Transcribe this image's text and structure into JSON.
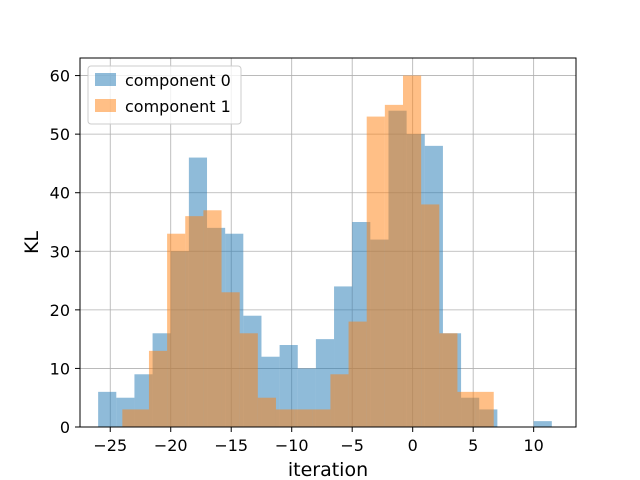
{
  "chart_data": {
    "type": "histogram",
    "xlabel": "iteration",
    "ylabel": "KL",
    "xlim": [
      -27.5,
      13.5
    ],
    "ylim": [
      0,
      63
    ],
    "xticks": [
      -25,
      -20,
      -15,
      -10,
      -5,
      0,
      5,
      10
    ],
    "yticks": [
      0,
      10,
      20,
      30,
      40,
      50,
      60
    ],
    "grid": true,
    "legend_position": "upper-left",
    "series": [
      {
        "name": "component 0",
        "color": "#1f77b4",
        "opacity": 0.5,
        "bins": [
          {
            "x0": -26.0,
            "x1": -24.5,
            "value": 6
          },
          {
            "x0": -24.5,
            "x1": -23.0,
            "value": 5
          },
          {
            "x0": -23.0,
            "x1": -21.5,
            "value": 9
          },
          {
            "x0": -21.5,
            "x1": -20.0,
            "value": 16
          },
          {
            "x0": -20.0,
            "x1": -18.5,
            "value": 30
          },
          {
            "x0": -18.5,
            "x1": -17.0,
            "value": 46
          },
          {
            "x0": -17.0,
            "x1": -15.5,
            "value": 34
          },
          {
            "x0": -15.5,
            "x1": -14.0,
            "value": 33
          },
          {
            "x0": -14.0,
            "x1": -12.5,
            "value": 19
          },
          {
            "x0": -12.5,
            "x1": -11.0,
            "value": 12
          },
          {
            "x0": -11.0,
            "x1": -9.5,
            "value": 14
          },
          {
            "x0": -9.5,
            "x1": -8.0,
            "value": 10
          },
          {
            "x0": -8.0,
            "x1": -6.5,
            "value": 15
          },
          {
            "x0": -6.5,
            "x1": -5.0,
            "value": 24
          },
          {
            "x0": -5.0,
            "x1": -3.5,
            "value": 35
          },
          {
            "x0": -3.5,
            "x1": -2.0,
            "value": 32
          },
          {
            "x0": -2.0,
            "x1": -0.5,
            "value": 54
          },
          {
            "x0": -0.5,
            "x1": 1.0,
            "value": 50
          },
          {
            "x0": 1.0,
            "x1": 2.5,
            "value": 48
          },
          {
            "x0": 2.5,
            "x1": 4.0,
            "value": 16
          },
          {
            "x0": 4.0,
            "x1": 5.5,
            "value": 5
          },
          {
            "x0": 5.5,
            "x1": 7.0,
            "value": 3
          },
          {
            "x0": 7.0,
            "x1": 8.5,
            "value": 0
          },
          {
            "x0": 8.5,
            "x1": 10.0,
            "value": 0
          },
          {
            "x0": 10.0,
            "x1": 11.5,
            "value": 1
          }
        ]
      },
      {
        "name": "component 1",
        "color": "#ff7f0e",
        "opacity": 0.5,
        "bins": [
          {
            "x0": -24.0,
            "x1": -21.8,
            "value": 3
          },
          {
            "x0": -21.8,
            "x1": -20.3,
            "value": 13
          },
          {
            "x0": -20.3,
            "x1": -18.8,
            "value": 33
          },
          {
            "x0": -18.8,
            "x1": -17.3,
            "value": 36
          },
          {
            "x0": -17.3,
            "x1": -15.8,
            "value": 37
          },
          {
            "x0": -15.8,
            "x1": -14.3,
            "value": 23
          },
          {
            "x0": -14.3,
            "x1": -12.8,
            "value": 16
          },
          {
            "x0": -12.8,
            "x1": -11.3,
            "value": 5
          },
          {
            "x0": -11.3,
            "x1": -9.8,
            "value": 3
          },
          {
            "x0": -9.8,
            "x1": -8.3,
            "value": 3
          },
          {
            "x0": -8.3,
            "x1": -6.8,
            "value": 3
          },
          {
            "x0": -6.8,
            "x1": -5.3,
            "value": 9
          },
          {
            "x0": -5.3,
            "x1": -3.8,
            "value": 18
          },
          {
            "x0": -3.8,
            "x1": -2.3,
            "value": 53
          },
          {
            "x0": -2.3,
            "x1": -0.8,
            "value": 55
          },
          {
            "x0": -0.8,
            "x1": 0.7,
            "value": 60
          },
          {
            "x0": 0.7,
            "x1": 2.2,
            "value": 38
          },
          {
            "x0": 2.2,
            "x1": 3.7,
            "value": 16
          },
          {
            "x0": 3.7,
            "x1": 5.2,
            "value": 6
          },
          {
            "x0": 5.2,
            "x1": 6.7,
            "value": 6
          }
        ]
      }
    ]
  }
}
